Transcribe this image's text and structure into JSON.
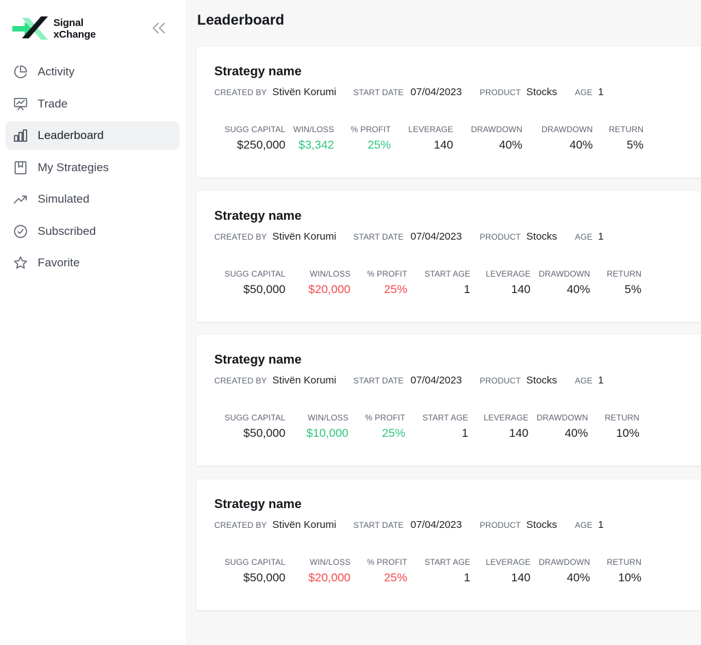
{
  "app": {
    "logo_line1": "Signal",
    "logo_line2": "xChange",
    "colors": {
      "brand_green": "#2ee089",
      "positive": "#2cc47f",
      "negative": "#f0494f"
    }
  },
  "sidebar": {
    "collapse_icon": "chevrons-left-icon",
    "items": [
      {
        "label": "Activity",
        "icon": "pie-chart-icon",
        "active": false
      },
      {
        "label": "Trade",
        "icon": "presentation-chart-icon",
        "active": false
      },
      {
        "label": "Leaderboard",
        "icon": "bar-chart-icon",
        "active": true
      },
      {
        "label": "My Strategies",
        "icon": "bookmark-book-icon",
        "active": false
      },
      {
        "label": "Simulated",
        "icon": "trending-up-icon",
        "active": false
      },
      {
        "label": "Subscribed",
        "icon": "check-circle-icon",
        "active": false
      },
      {
        "label": "Favorite",
        "icon": "star-icon",
        "active": false
      }
    ]
  },
  "main": {
    "title": "Leaderboard",
    "meta_labels": {
      "created_by": "CREATED BY",
      "start_date": "START DATE",
      "product": "PRODUCT",
      "age": "AGE"
    },
    "cards": [
      {
        "title": "Strategy name",
        "created_by": "Stivën Korumi",
        "start_date": "07/04/2023",
        "product": "Stocks",
        "age": "1",
        "stats": [
          {
            "label": "SUGG CAPITAL",
            "value": "$250,000",
            "tone": "neutral"
          },
          {
            "label": "WIN/LOSS",
            "value": "$3,342",
            "tone": "positive"
          },
          {
            "label": "% PROFIT",
            "value": "25%",
            "tone": "positive"
          },
          {
            "label": "LEVERAGE",
            "value": "140",
            "tone": "neutral"
          },
          {
            "label": "DRAWDOWN",
            "value": "40%",
            "tone": "neutral"
          },
          {
            "label": "DRAWDOWN",
            "value": "40%",
            "tone": "neutral"
          },
          {
            "label": "RETURN",
            "value": "5%",
            "tone": "neutral"
          }
        ]
      },
      {
        "title": "Strategy name",
        "created_by": "Stivën Korumi",
        "start_date": "07/04/2023",
        "product": "Stocks",
        "age": "1",
        "stats": [
          {
            "label": "SUGG CAPITAL",
            "value": "$50,000",
            "tone": "neutral"
          },
          {
            "label": "WIN/LOSS",
            "value": "$20,000",
            "tone": "negative"
          },
          {
            "label": "% PROFIT",
            "value": "25%",
            "tone": "negative"
          },
          {
            "label": "START AGE",
            "value": "1",
            "tone": "neutral"
          },
          {
            "label": "LEVERAGE",
            "value": "140",
            "tone": "neutral"
          },
          {
            "label": "DRAWDOWN",
            "value": "40%",
            "tone": "neutral"
          },
          {
            "label": "RETURN",
            "value": "5%",
            "tone": "neutral"
          }
        ]
      },
      {
        "title": "Strategy name",
        "created_by": "Stivën Korumi",
        "start_date": "07/04/2023",
        "product": "Stocks",
        "age": "1",
        "stats": [
          {
            "label": "SUGG CAPITAL",
            "value": "$50,000",
            "tone": "neutral"
          },
          {
            "label": "WIN/LOSS",
            "value": "$10,000",
            "tone": "positive"
          },
          {
            "label": "% PROFIT",
            "value": "25%",
            "tone": "positive"
          },
          {
            "label": "START AGE",
            "value": "1",
            "tone": "neutral"
          },
          {
            "label": "LEVERAGE",
            "value": "140",
            "tone": "neutral"
          },
          {
            "label": "DRAWDOWN",
            "value": "40%",
            "tone": "neutral"
          },
          {
            "label": "RETURN",
            "value": "10%",
            "tone": "neutral"
          }
        ]
      },
      {
        "title": "Strategy name",
        "created_by": "Stivën Korumi",
        "start_date": "07/04/2023",
        "product": "Stocks",
        "age": "1",
        "stats": [
          {
            "label": "SUGG CAPITAL",
            "value": "$50,000",
            "tone": "neutral"
          },
          {
            "label": "WIN/LOSS",
            "value": "$20,000",
            "tone": "negative"
          },
          {
            "label": "% PROFIT",
            "value": "25%",
            "tone": "negative"
          },
          {
            "label": "START AGE",
            "value": "1",
            "tone": "neutral"
          },
          {
            "label": "LEVERAGE",
            "value": "140",
            "tone": "neutral"
          },
          {
            "label": "DRAWDOWN",
            "value": "40%",
            "tone": "neutral"
          },
          {
            "label": "RETURN",
            "value": "10%",
            "tone": "neutral"
          }
        ]
      }
    ]
  }
}
